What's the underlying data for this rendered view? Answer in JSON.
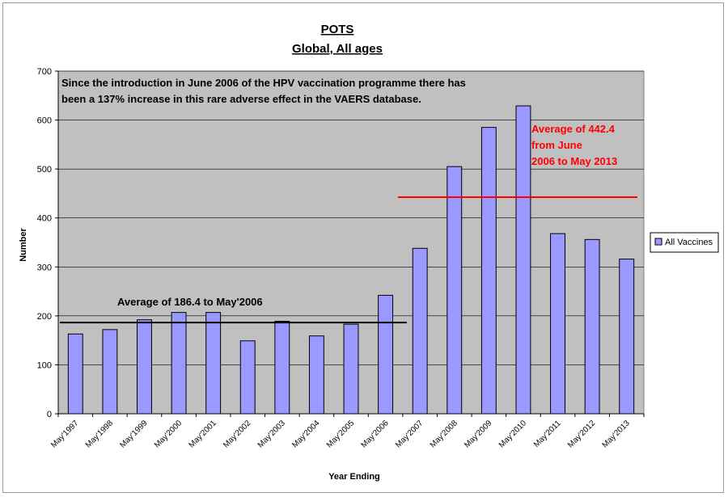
{
  "chart_data": {
    "type": "bar",
    "title": "POTS",
    "subtitle": "Global, All ages",
    "xlabel": "Year Ending",
    "ylabel": "Number",
    "ylim": [
      0,
      700
    ],
    "yticks": [
      0,
      100,
      200,
      300,
      400,
      500,
      600,
      700
    ],
    "grid": true,
    "legend_position": "right",
    "categories": [
      "May'1997",
      "May'1998",
      "May'1999",
      "May'2000",
      "May'2001",
      "May'2002",
      "May'2003",
      "May'2004",
      "May'2005",
      "May'2006",
      "May'2007",
      "May'2008",
      "May'2009",
      "May'2010",
      "May'2011",
      "May'2012",
      "May'2013"
    ],
    "series": [
      {
        "name": "All Vaccines",
        "color": "#9999ff",
        "values": [
          163,
          172,
          192,
          207,
          207,
          149,
          189,
          159,
          183,
          242,
          338,
          505,
          585,
          629,
          368,
          356,
          316
        ]
      }
    ],
    "annotations": {
      "intro_line1": "Since the introduction in June 2006 of the HPV vaccination programme there has",
      "intro_line2": "been a 137% increase in this rare adverse effect in the VAERS database.",
      "avg_before": {
        "label": "Average of 186.4 to May'2006",
        "value": 186.4,
        "from": "May'1997",
        "to": "May'2006",
        "color": "#000000"
      },
      "avg_after": {
        "label_lines": [
          "Average of 442.4",
          "from June",
          "2006 to May 2013"
        ],
        "value": 442.4,
        "from": "May'2007",
        "to": "May'2013",
        "color": "#ff0000"
      }
    },
    "plot_bg": "#c0c0c0",
    "bar_outline": "#000000"
  }
}
